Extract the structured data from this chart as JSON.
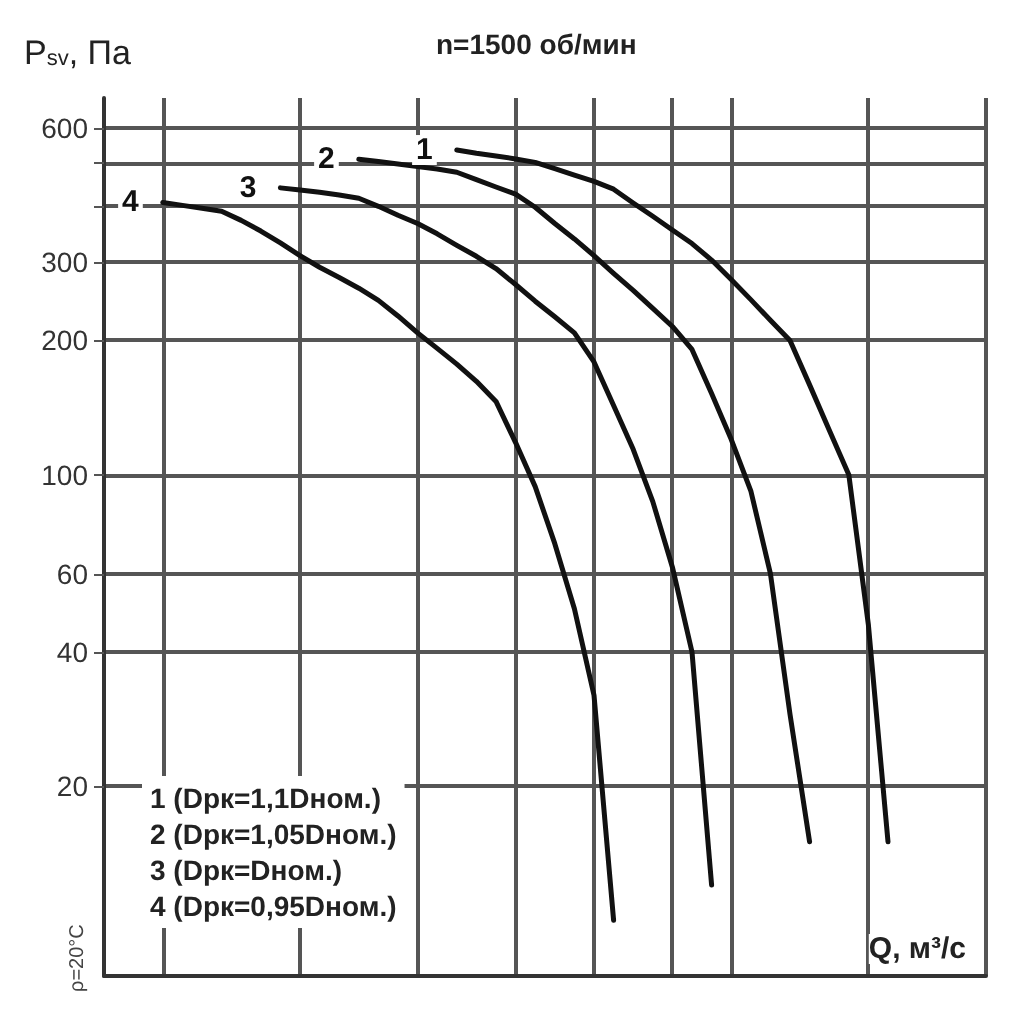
{
  "chart_data": {
    "type": "line",
    "title": "n=1500 об/мин",
    "ylabel": "P$_{sv}$, Па",
    "xlabel": "Q, м³/с",
    "annotations": [
      "1 (Dрк=1,1Dном.)",
      "2 (Dрк=1,05Dном.)",
      "3 (Dрк=Dном.)",
      "4 (Dрк=0,95Dном.)",
      "ρ=20°C"
    ],
    "log": "y",
    "grid": true,
    "legend": false,
    "marker": "none",
    "line_style": "solid",
    "tick_labels": "y",
    "categories": [
      null,
      null,
      null,
      null,
      null,
      null,
      null,
      null,
      null,
      null,
      null,
      null,
      null,
      null,
      null,
      null,
      null,
      null,
      null,
      null,
      null,
      null,
      null,
      null,
      null,
      null,
      null,
      null,
      null,
      null,
      null,
      null,
      null,
      null,
      null,
      null,
      null,
      null,
      null,
      null,
      null,
      null,
      null,
      null,
      null,
      null
    ],
    "ylim": [
      7.5,
      700
    ],
    "yticks": [
      20,
      40,
      60,
      100,
      200,
      300,
      {
        "value": 400,
        "label": null
      },
      {
        "value": 500,
        "label": null
      },
      600
    ],
    "series": [
      {
        "name": "1",
        "color": "#111111",
        "values": [
          null,
          null,
          null,
          null,
          null,
          null,
          null,
          null,
          null,
          null,
          null,
          null,
          null,
          null,
          null,
          null,
          null,
          null,
          535,
          526,
          519,
          511,
          502,
          486,
          470,
          455,
          437,
          407,
          380,
          354,
          330,
          303,
          274,
          247,
          222,
          200,
          159,
          126,
          100,
          46,
          15,
          null,
          null,
          null,
          null,
          null
        ]
      },
      {
        "name": "2",
        "color": "#111111",
        "values": [
          null,
          null,
          null,
          null,
          null,
          null,
          null,
          null,
          null,
          null,
          null,
          null,
          null,
          510,
          504,
          498,
          491,
          485,
          477,
          459,
          442,
          426,
          398,
          366,
          338,
          310,
          283,
          259,
          236,
          215,
          191,
          152,
          120,
          92,
          60,
          29,
          15,
          null,
          null,
          null,
          null,
          null,
          null,
          null,
          null,
          null
        ]
      },
      {
        "name": "3",
        "color": "#111111",
        "values": [
          null,
          null,
          null,
          null,
          null,
          null,
          null,
          null,
          null,
          440,
          435,
          430,
          424,
          417,
          400,
          382,
          366,
          347,
          327,
          309,
          290,
          267,
          245,
          226,
          208,
          179,
          143,
          114,
          87,
          62,
          40,
          12,
          null,
          null,
          null,
          null,
          null,
          null,
          null,
          null,
          null,
          null,
          null,
          null,
          null,
          null
        ]
      },
      {
        "name": "4",
        "color": "#111111",
        "values": [
          null,
          null,
          null,
          408,
          402,
          396,
          390,
          372,
          352,
          331,
          310,
          292,
          277,
          262,
          246,
          227,
          208,
          192,
          177,
          162,
          146,
          118,
          94,
          70,
          50,
          32,
          10,
          null,
          null,
          null,
          null,
          null,
          null,
          null,
          null,
          null,
          null,
          null,
          null,
          null,
          null,
          null,
          null,
          null,
          null,
          null
        ]
      }
    ]
  }
}
